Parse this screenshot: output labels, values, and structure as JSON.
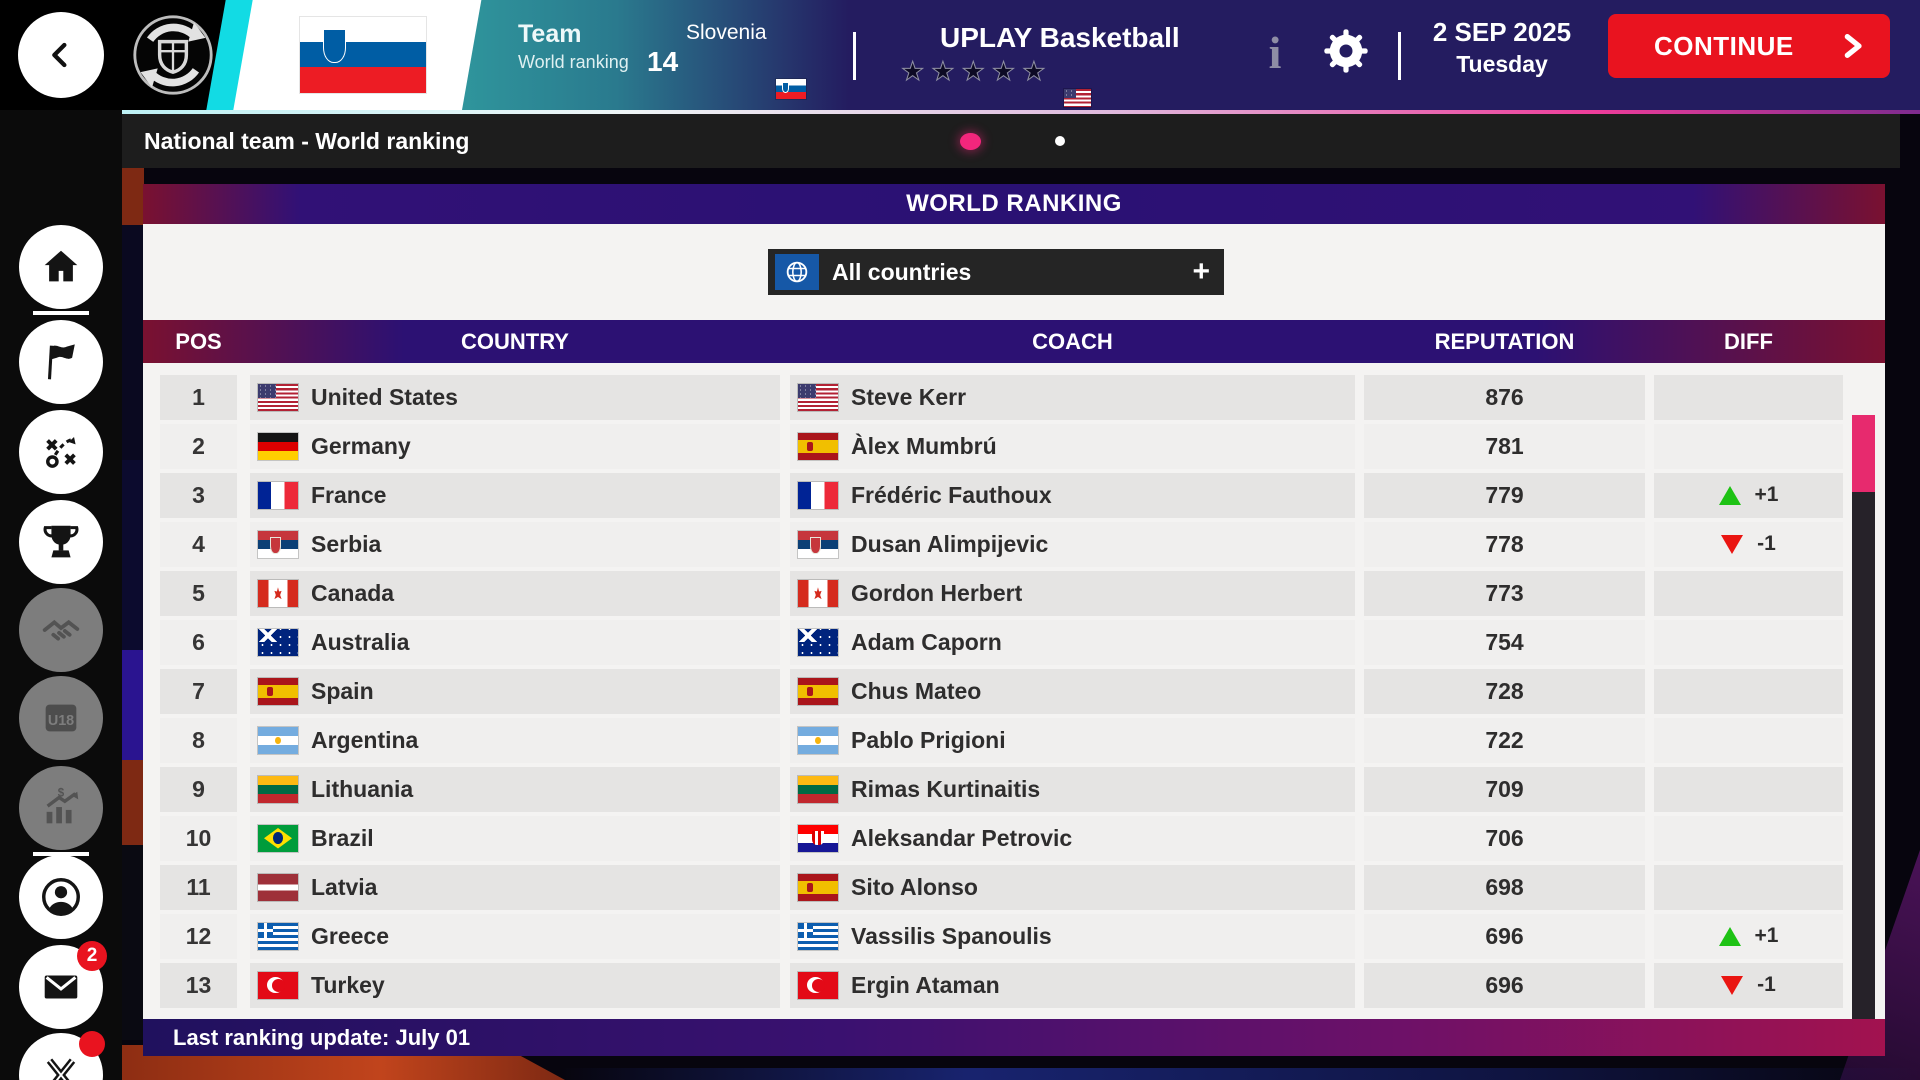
{
  "header": {
    "team_label": "Team",
    "team_sublabel": "World ranking",
    "nation": {
      "name": "Slovenia",
      "flag": "si",
      "rank": "14"
    },
    "club": {
      "name": "UPLAY Basketball",
      "flag": "us",
      "stars": 5
    },
    "date": {
      "line1": "2 SEP 2025",
      "line2": "Tuesday"
    },
    "continue_label": "CONTINUE"
  },
  "breadcrumb": {
    "label": "National team - World ranking",
    "page_dots": {
      "count": 2,
      "active_index": 0
    }
  },
  "sidebar": {
    "items": [
      {
        "id": "home",
        "label": "home",
        "state": "active",
        "badge": null
      },
      {
        "id": "divider",
        "label": "",
        "state": "",
        "badge": null
      },
      {
        "id": "national-team",
        "label": "national team",
        "state": "default",
        "badge": null
      },
      {
        "id": "tactics",
        "label": "tactics",
        "state": "default",
        "badge": null
      },
      {
        "id": "competitions",
        "label": "competitions",
        "state": "default",
        "badge": null
      },
      {
        "id": "agents",
        "label": "agents",
        "state": "disabled",
        "badge": null
      },
      {
        "id": "u18",
        "label": "U18",
        "state": "disabled",
        "badge": null
      },
      {
        "id": "finances",
        "label": "finances",
        "state": "disabled",
        "badge": null
      },
      {
        "id": "divider",
        "label": "",
        "state": "",
        "badge": null
      },
      {
        "id": "profile",
        "label": "profile",
        "state": "default",
        "badge": null
      },
      {
        "id": "messages",
        "label": "messages",
        "state": "default",
        "badge": "2"
      },
      {
        "id": "social-x",
        "label": "social",
        "state": "default",
        "badge": "dot"
      }
    ],
    "u18_text": "U18"
  },
  "panel": {
    "title": "WORLD RANKING",
    "filter": {
      "label": "All countries",
      "icon": "globe-icon",
      "action": "+"
    },
    "table": {
      "columns": [
        "POS",
        "COUNTRY",
        "COACH",
        "REPUTATION",
        "DIFF"
      ],
      "rows": [
        {
          "pos": "1",
          "country": {
            "name": "United States",
            "flag": "us"
          },
          "coach": {
            "name": "Steve Kerr",
            "flag": "us"
          },
          "reputation": "876",
          "diff": null
        },
        {
          "pos": "2",
          "country": {
            "name": "Germany",
            "flag": "de"
          },
          "coach": {
            "name": "Àlex Mumbrú",
            "flag": "es"
          },
          "reputation": "781",
          "diff": null
        },
        {
          "pos": "3",
          "country": {
            "name": "France",
            "flag": "fr"
          },
          "coach": {
            "name": "Frédéric Fauthoux",
            "flag": "fr"
          },
          "reputation": "779",
          "diff": {
            "dir": "up",
            "label": "+1"
          }
        },
        {
          "pos": "4",
          "country": {
            "name": "Serbia",
            "flag": "rs"
          },
          "coach": {
            "name": "Dusan Alimpijevic",
            "flag": "rs"
          },
          "reputation": "778",
          "diff": {
            "dir": "down",
            "label": "-1"
          }
        },
        {
          "pos": "5",
          "country": {
            "name": "Canada",
            "flag": "ca"
          },
          "coach": {
            "name": "Gordon Herbert",
            "flag": "ca"
          },
          "reputation": "773",
          "diff": null
        },
        {
          "pos": "6",
          "country": {
            "name": "Australia",
            "flag": "au"
          },
          "coach": {
            "name": "Adam Caporn",
            "flag": "au"
          },
          "reputation": "754",
          "diff": null
        },
        {
          "pos": "7",
          "country": {
            "name": "Spain",
            "flag": "es"
          },
          "coach": {
            "name": "Chus Mateo",
            "flag": "es"
          },
          "reputation": "728",
          "diff": null
        },
        {
          "pos": "8",
          "country": {
            "name": "Argentina",
            "flag": "ar"
          },
          "coach": {
            "name": "Pablo Prigioni",
            "flag": "ar"
          },
          "reputation": "722",
          "diff": null
        },
        {
          "pos": "9",
          "country": {
            "name": "Lithuania",
            "flag": "lt"
          },
          "coach": {
            "name": "Rimas Kurtinaitis",
            "flag": "lt"
          },
          "reputation": "709",
          "diff": null
        },
        {
          "pos": "10",
          "country": {
            "name": "Brazil",
            "flag": "br"
          },
          "coach": {
            "name": "Aleksandar Petrovic",
            "flag": "hr"
          },
          "reputation": "706",
          "diff": null
        },
        {
          "pos": "11",
          "country": {
            "name": "Latvia",
            "flag": "lv"
          },
          "coach": {
            "name": "Sito Alonso",
            "flag": "es"
          },
          "reputation": "698",
          "diff": null
        },
        {
          "pos": "12",
          "country": {
            "name": "Greece",
            "flag": "gr"
          },
          "coach": {
            "name": "Vassilis Spanoulis",
            "flag": "gr"
          },
          "reputation": "696",
          "diff": {
            "dir": "up",
            "label": "+1"
          }
        },
        {
          "pos": "13",
          "country": {
            "name": "Turkey",
            "flag": "tr"
          },
          "coach": {
            "name": "Ergin Ataman",
            "flag": "tr"
          },
          "reputation": "696",
          "diff": {
            "dir": "down",
            "label": "-1"
          }
        }
      ]
    },
    "footer": "Last ranking update: July 01"
  },
  "colors": {
    "continue_red": "#e9131f",
    "scrollbar_pink": "#e72a6e",
    "dot_pink": "#f3267c",
    "diff_up_green": "#1ec214",
    "diff_down_red": "#ea1511",
    "filter_blue": "#1658a7",
    "header_navy": "#241c60",
    "teal": "#2f959c",
    "cyan_strip": "#12dbe4"
  }
}
